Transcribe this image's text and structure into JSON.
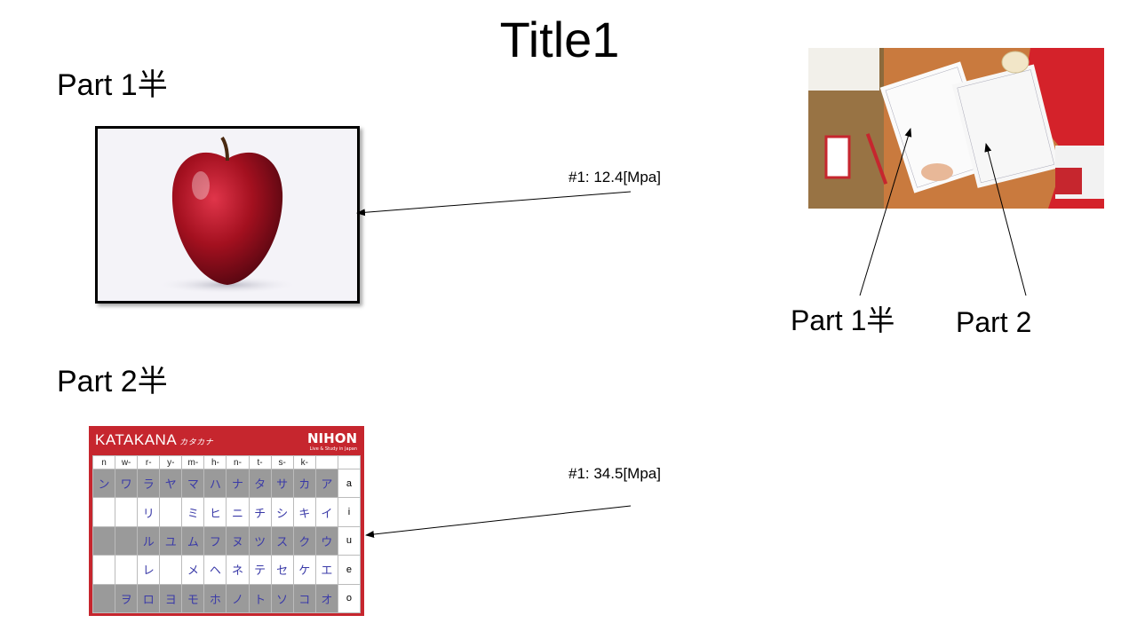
{
  "slide": {
    "title": "Title1",
    "left_heading_1": "Part 1半",
    "left_heading_2": "Part 2半",
    "annotation_1": "#1: 12.4[Mpa]",
    "annotation_2": "#1: 34.5[Mpa]",
    "callout_part1": "Part 1半",
    "callout_part2": "Part 2"
  },
  "katakana": {
    "title": "KATAKANA",
    "title_kana": "カタカナ",
    "logo": "NIHON",
    "logo_tagline": "Live & Study in Japan",
    "columns": [
      "n",
      "w-",
      "r-",
      "y-",
      "m-",
      "h-",
      "n-",
      "t-",
      "s-",
      "k-",
      "",
      ""
    ],
    "rows": [
      {
        "cells": [
          "ン",
          "ワ",
          "ラ",
          "ヤ",
          "マ",
          "ハ",
          "ナ",
          "タ",
          "サ",
          "カ",
          "ア"
        ],
        "vowel": "a"
      },
      {
        "cells": [
          "",
          "",
          "リ",
          "",
          "ミ",
          "ヒ",
          "ニ",
          "チ",
          "シ",
          "キ",
          "イ"
        ],
        "vowel": "i"
      },
      {
        "cells": [
          "",
          "",
          "ル",
          "ユ",
          "ム",
          "フ",
          "ヌ",
          "ツ",
          "ス",
          "ク",
          "ウ"
        ],
        "vowel": "u"
      },
      {
        "cells": [
          "",
          "",
          "レ",
          "",
          "メ",
          "ヘ",
          "ネ",
          "テ",
          "セ",
          "ケ",
          "エ"
        ],
        "vowel": "e"
      },
      {
        "cells": [
          "",
          "ヲ",
          "ロ",
          "ヨ",
          "モ",
          "ホ",
          "ノ",
          "ト",
          "ソ",
          "コ",
          "オ"
        ],
        "vowel": "o"
      }
    ]
  },
  "colors": {
    "chart_red": "#c6262e",
    "apple_red": "#9e1020",
    "desk_wood": "#c97a3e"
  }
}
